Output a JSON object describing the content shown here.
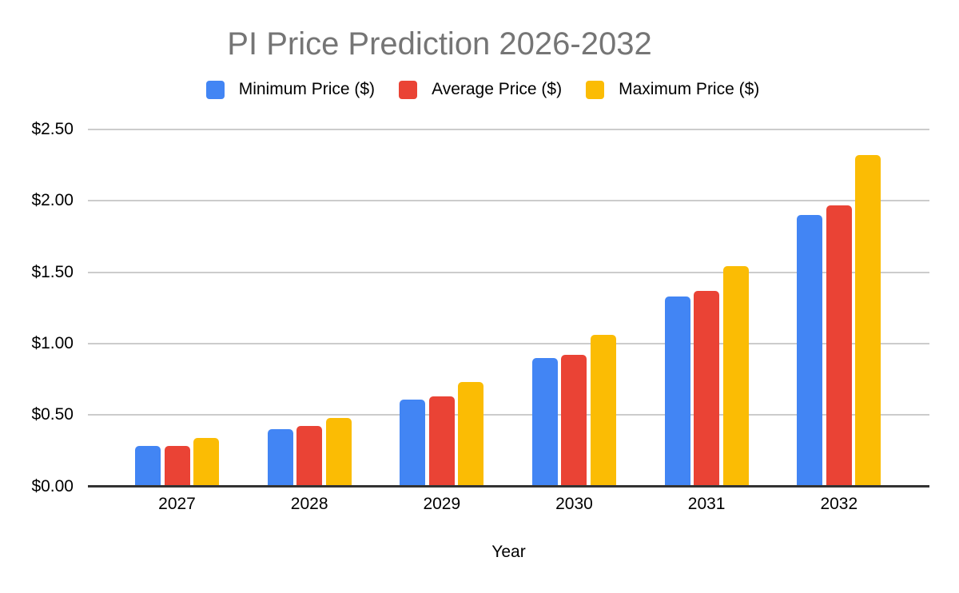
{
  "chart_data": {
    "type": "bar",
    "title": "PI Price Prediction 2026-2032",
    "categories": [
      "2027",
      "2028",
      "2029",
      "2030",
      "2031",
      "2032"
    ],
    "series": [
      {
        "name": "Minimum Price ($)",
        "key": "minimum",
        "color": "#4285F4",
        "values": [
          0.28,
          0.4,
          0.61,
          0.9,
          1.33,
          1.9
        ]
      },
      {
        "name": "Average Price ($)",
        "key": "average",
        "color": "#EA4335",
        "values": [
          0.28,
          0.42,
          0.63,
          0.92,
          1.37,
          1.97
        ]
      },
      {
        "name": "Maximum Price ($)",
        "key": "maximum",
        "color": "#FBBC04",
        "values": [
          0.34,
          0.48,
          0.73,
          1.06,
          1.54,
          2.32
        ]
      }
    ],
    "xlabel": "Year",
    "ylabel": "",
    "ylim": [
      0,
      2.5
    ],
    "ytick_step": 0.5,
    "ytick_labels": [
      "$0.00",
      "$0.50",
      "$1.00",
      "$1.50",
      "$2.00",
      "$2.50"
    ],
    "grid": true,
    "legend_position": "top",
    "colors": {
      "title_text": "#757575",
      "axis_text": "#000000",
      "gridline": "#cccccc",
      "axis_line": "#333333",
      "background": "#ffffff"
    }
  }
}
